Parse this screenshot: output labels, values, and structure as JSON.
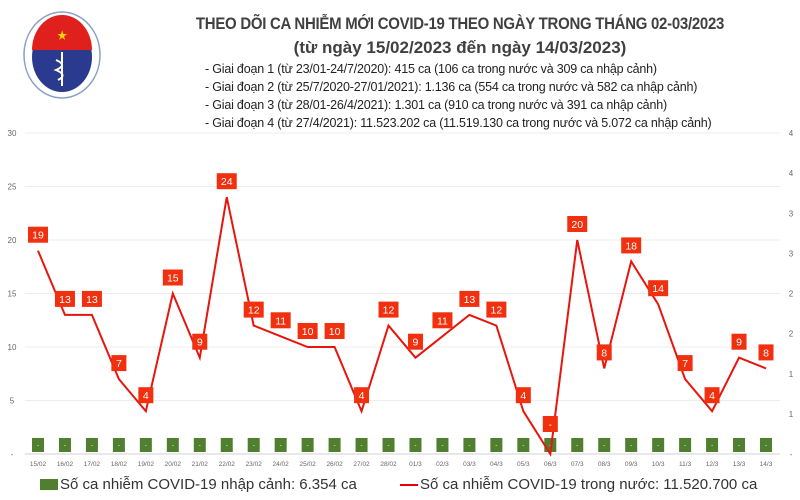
{
  "header": {
    "logo_text": "BỘ Y TẾ MINISTRY OF HEALTH",
    "title": "THEO DÕI CA NHIỄM MỚI COVID-19 THEO NGÀY TRONG THÁNG 02-03/2023",
    "subtitle": "(từ ngày 15/02/2023 đến ngày 14/03/2023)",
    "phases": [
      "- Giai đoạn 1 (từ 23/01-24/7/2020): 415 ca (106 ca trong nước và 309 ca nhập cảnh)",
      "- Giai đoạn 2 (từ 25/7/2020-27/01/2021): 1.136 ca (554 ca trong nước và 582 ca nhập cảnh)",
      "- Giai đoạn 3 (từ 28/01-26/4/2021): 1.301 ca (910 ca trong nước và 391 ca nhập cảnh)",
      "- Giai đoạn 4 (từ 27/4/2021): 11.523.202 ca (11.519.130 ca trong nước và 5.072 ca nhập cảnh)"
    ]
  },
  "chart_data": {
    "type": "bar+line",
    "categories": [
      "15/02",
      "16/02",
      "17/02",
      "18/02",
      "19/02",
      "20/02",
      "21/02",
      "22/02",
      "23/02",
      "24/02",
      "25/02",
      "26/02",
      "27/02",
      "28/02",
      "01/3",
      "02/3",
      "03/3",
      "04/3",
      "05/3",
      "06/3",
      "07/3",
      "08/3",
      "09/3",
      "10/3",
      "11/3",
      "12/3",
      "13/3",
      "14/3"
    ],
    "series": [
      {
        "name": "Số ca nhiễm COVID-19 nhập cảnh: 6.354 ca",
        "type": "bar",
        "axis": "right",
        "color": "#4f7f2f",
        "values": [
          0,
          0,
          0,
          0,
          0,
          0,
          0,
          0,
          0,
          0,
          0,
          0,
          0,
          0,
          0,
          0,
          0,
          0,
          0,
          0,
          0,
          0,
          0,
          0,
          0,
          0,
          0,
          0
        ],
        "labels": [
          "-",
          "-",
          "-",
          "-",
          "-",
          "-",
          "-",
          "-",
          "-",
          "-",
          "-",
          "-",
          "-",
          "-",
          "-",
          "-",
          "-",
          "-",
          "-",
          "-",
          "-",
          "-",
          "-",
          "-",
          "-",
          "-",
          "-",
          "-"
        ]
      },
      {
        "name": "Số ca nhiễm COVID-19 trong nước: 11.520.700 ca",
        "type": "line",
        "axis": "left",
        "color": "#e8150c",
        "values": [
          19,
          13,
          13,
          7,
          4,
          15,
          9,
          24,
          12,
          11,
          10,
          10,
          4,
          12,
          9,
          11,
          13,
          12,
          4,
          0,
          20,
          8,
          18,
          14,
          7,
          4,
          9,
          8
        ],
        "labels": [
          "19",
          "13",
          "13",
          "7",
          "4",
          "15",
          "9",
          "24",
          "12",
          "11",
          "10",
          "10",
          "4",
          "12",
          "9",
          "11",
          "13",
          "12",
          "4",
          "-",
          "20",
          "8",
          "18",
          "14",
          "7",
          "4",
          "9",
          "8"
        ]
      }
    ],
    "left_axis": {
      "ylim": [
        0,
        30
      ],
      "ticks": [
        "-",
        "5",
        "10",
        "15",
        "20",
        "25",
        "30"
      ]
    },
    "right_axis": {
      "ticks": [
        "-",
        "1",
        "1",
        "2",
        "2",
        "3",
        "3",
        "4",
        "4"
      ]
    },
    "grid": true,
    "legend": "bottom"
  }
}
